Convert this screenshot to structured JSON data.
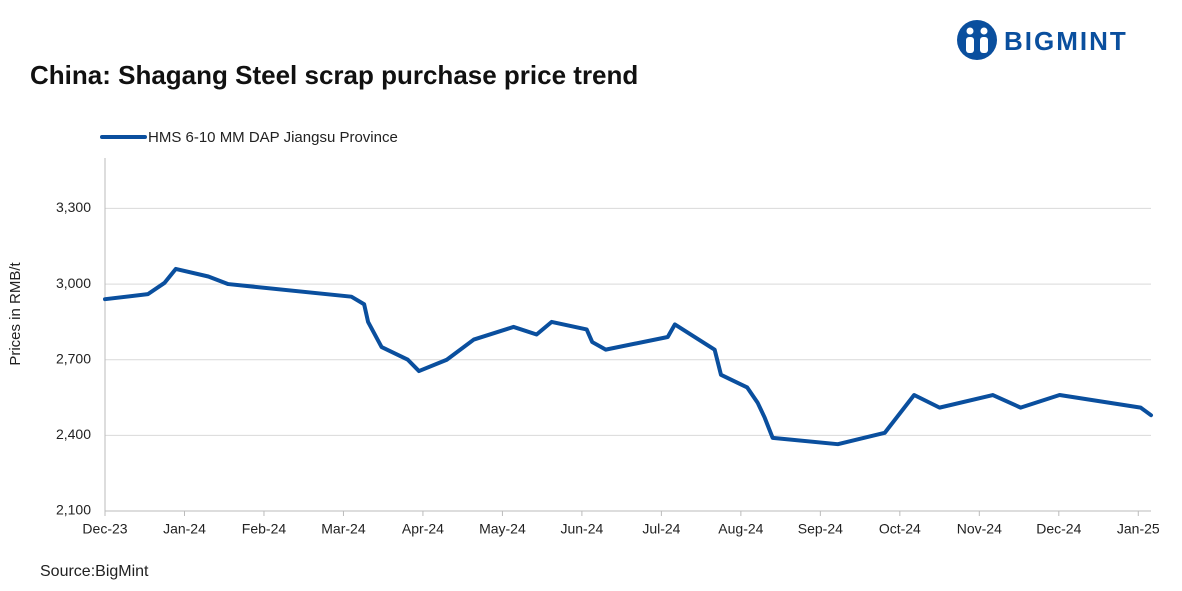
{
  "brand": "BIGMINT",
  "source": "Source:BigMint",
  "chart_data": {
    "type": "line",
    "title": "China: Shagang Steel scrap purchase price trend",
    "y_label": "Prices in RMB/t",
    "x": [
      0,
      0.54,
      0.75,
      0.89,
      1.3,
      1.55,
      3.1,
      3.26,
      3.31,
      3.48,
      3.81,
      3.95,
      4.3,
      4.64,
      5.14,
      5.43,
      5.62,
      6.06,
      6.13,
      6.3,
      7.08,
      7.17,
      7.67,
      7.75,
      8.08,
      8.21,
      8.3,
      8.4,
      9.22,
      9.81,
      10.18,
      10.5,
      11.17,
      11.52,
      12.01,
      13.03,
      13.16
    ],
    "series": [
      {
        "name": "HMS 6-10 MM DAP Jiangsu Province",
        "color": "#0a4f9e",
        "values": [
          2940,
          2960,
          3005,
          3060,
          3030,
          3000,
          2950,
          2920,
          2850,
          2750,
          2700,
          2655,
          2700,
          2780,
          2830,
          2800,
          2850,
          2820,
          2770,
          2740,
          2790,
          2840,
          2740,
          2640,
          2590,
          2530,
          2470,
          2390,
          2365,
          2410,
          2560,
          2510,
          2560,
          2510,
          2560,
          2510,
          2480
        ]
      }
    ],
    "xlim": [
      0,
      13.16
    ],
    "xticks": [
      {
        "value": 0,
        "label": "Dec-23"
      },
      {
        "value": 1,
        "label": "Jan-24"
      },
      {
        "value": 2,
        "label": "Feb-24"
      },
      {
        "value": 3,
        "label": "Mar-24"
      },
      {
        "value": 4,
        "label": "Apr-24"
      },
      {
        "value": 5,
        "label": "May-24"
      },
      {
        "value": 6,
        "label": "Jun-24"
      },
      {
        "value": 7,
        "label": "Jul-24"
      },
      {
        "value": 8,
        "label": "Aug-24"
      },
      {
        "value": 9,
        "label": "Sep-24"
      },
      {
        "value": 10,
        "label": "Oct-24"
      },
      {
        "value": 11,
        "label": "Nov-24"
      },
      {
        "value": 12,
        "label": "Dec-24"
      },
      {
        "value": 13,
        "label": "Jan-25"
      }
    ],
    "ylim": [
      2100,
      3500
    ],
    "yticks": [
      {
        "value": 2100,
        "label": "2,100"
      },
      {
        "value": 2400,
        "label": "2,400"
      },
      {
        "value": 2700,
        "label": "2,700"
      },
      {
        "value": 3000,
        "label": "3,000"
      },
      {
        "value": 3300,
        "label": "3,300"
      }
    ],
    "grid": true
  }
}
